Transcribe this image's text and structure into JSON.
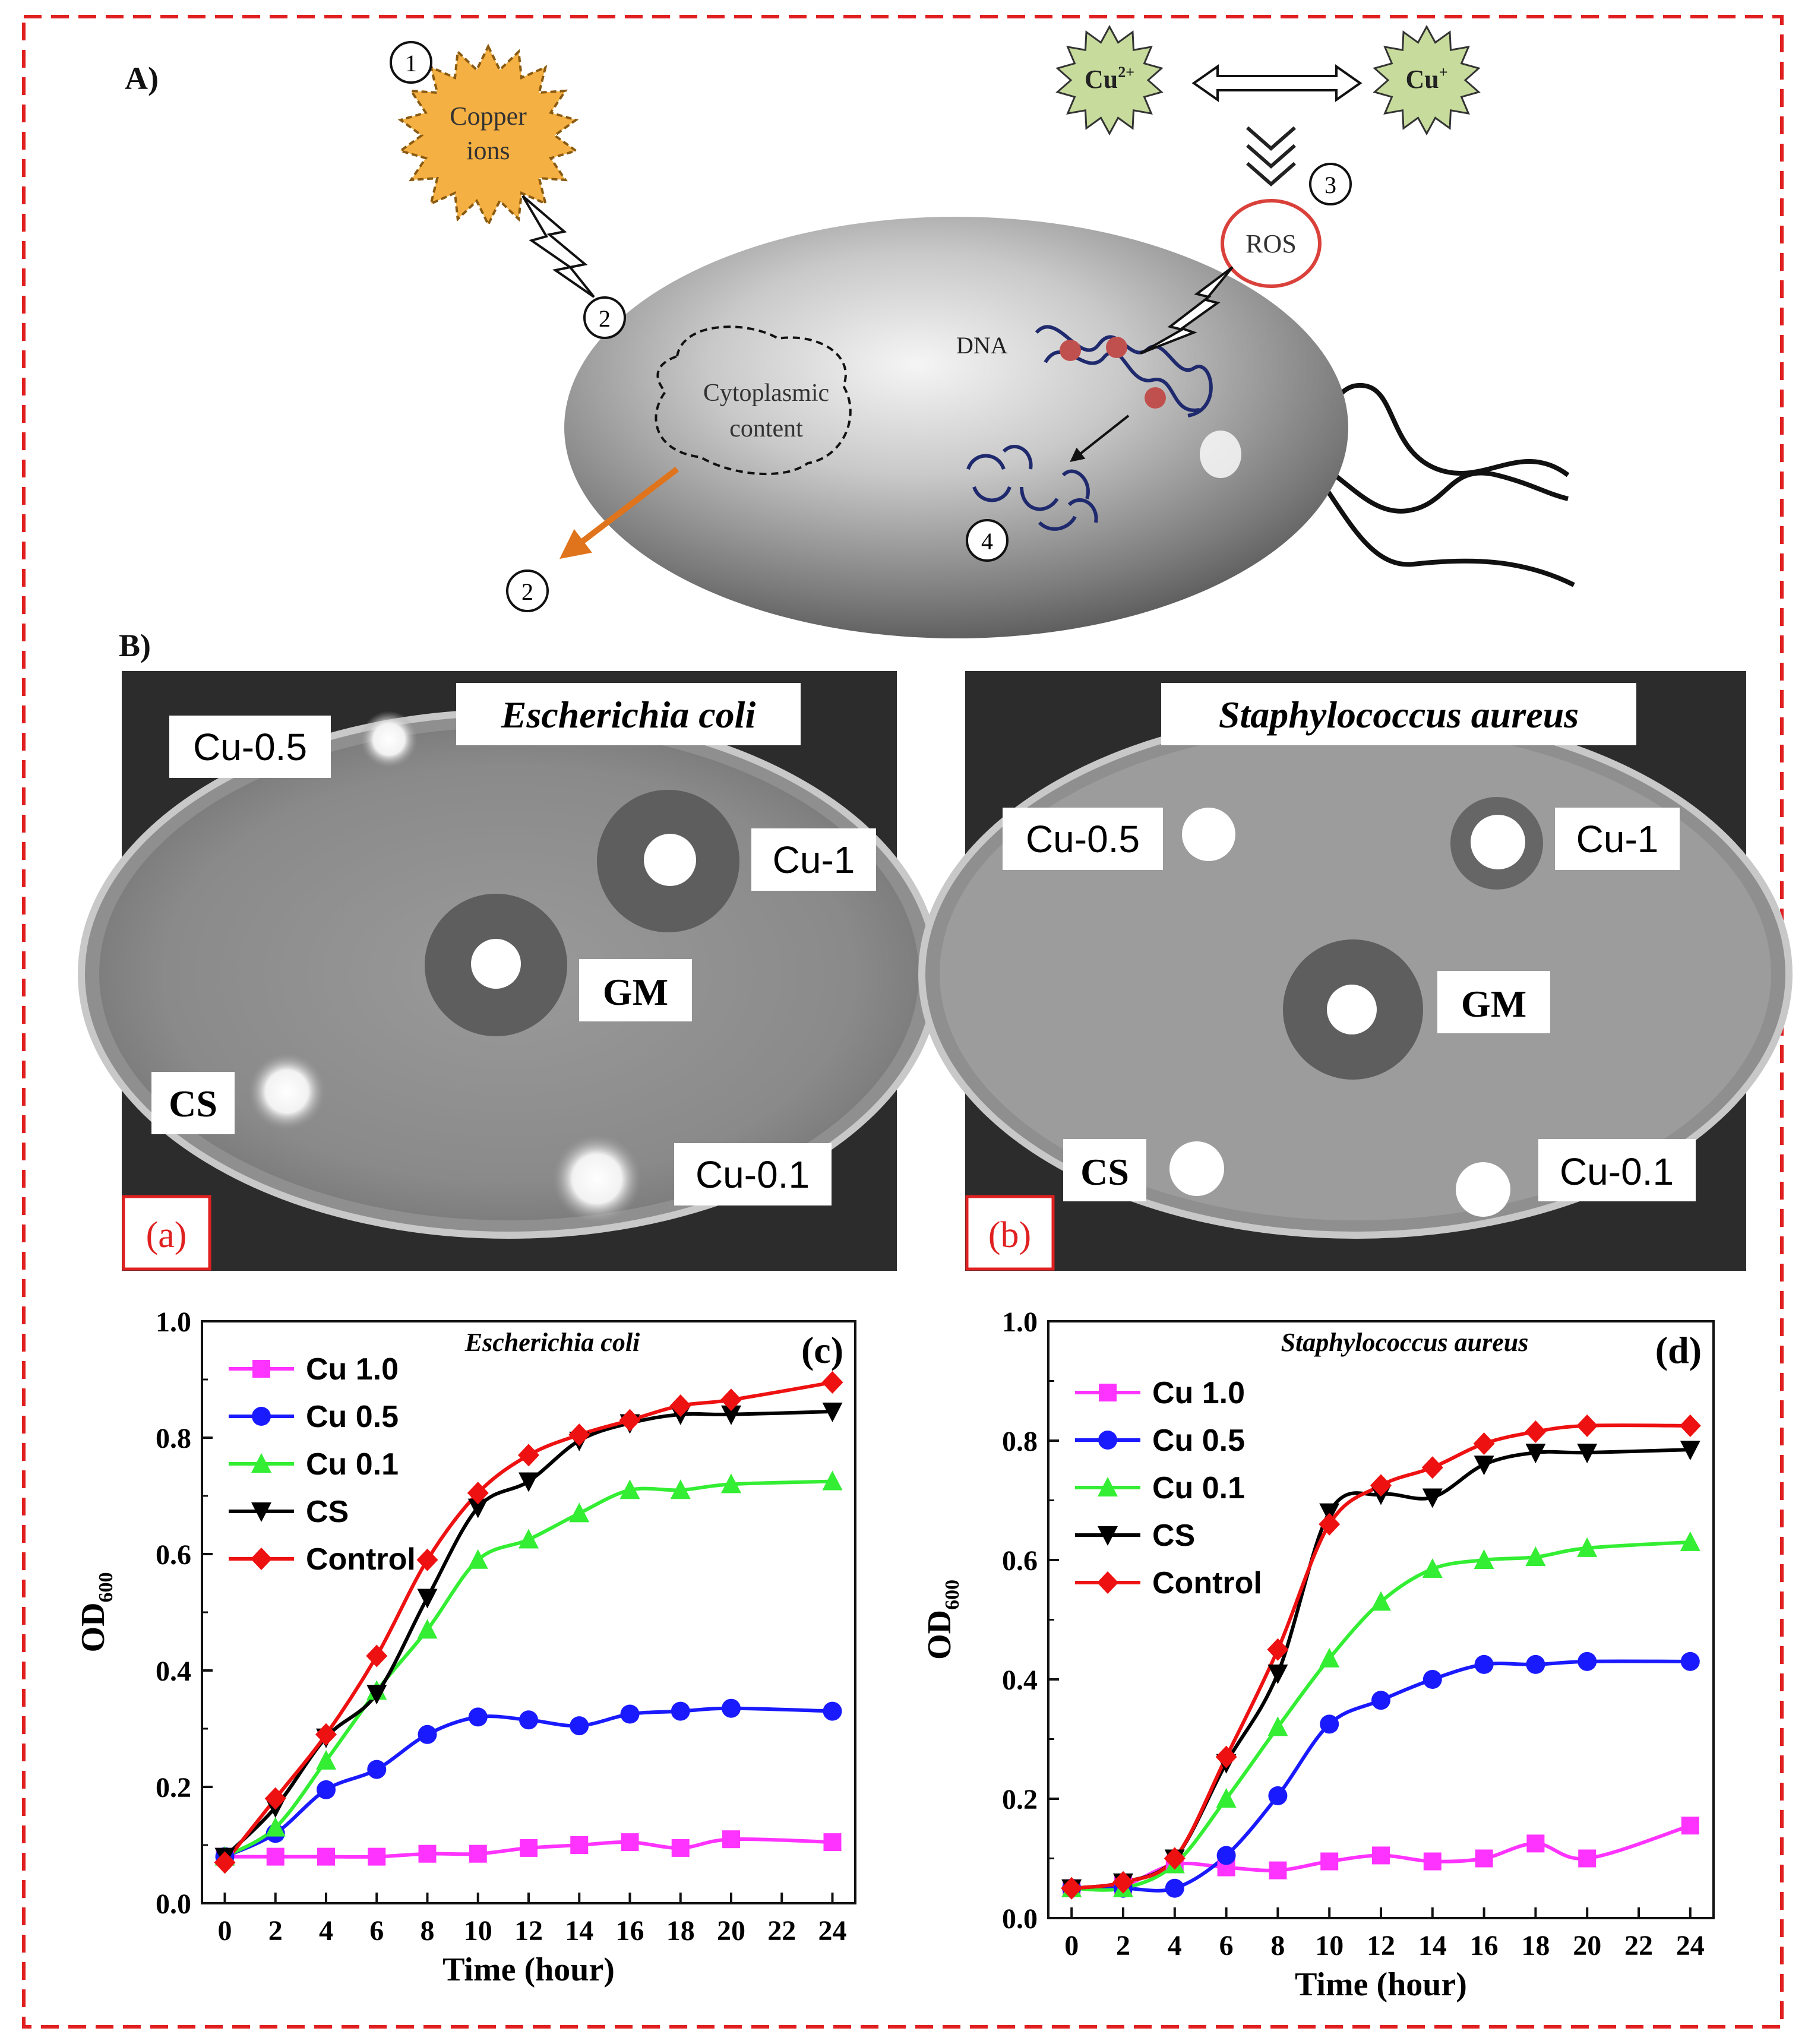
{
  "panelA": {
    "label": "A)",
    "copper_ions": "Copper ions",
    "copper_ions_lines": [
      "Copper",
      "ions"
    ],
    "cu2": "Cu2+",
    "cu2_base": "Cu",
    "cu2_sup": "2+",
    "cu1": "Cu+",
    "cu1_base": "Cu",
    "cu1_sup": "+",
    "ros": "ROS",
    "dna": "DNA",
    "cytoplasmic_content": "Cytoplasmic content",
    "cyto_lines": [
      "Cytoplasmic",
      "content"
    ],
    "steps": [
      "1",
      "2",
      "2",
      "3",
      "4"
    ]
  },
  "panelB": {
    "label": "B)",
    "plates": [
      {
        "tag": "(a)",
        "organism": "Escherichia coli",
        "labels": {
          "cu05": "Cu-0.5",
          "cu1": "Cu-1",
          "gm": "GM",
          "cs": "CS",
          "cu01": "Cu-0.1"
        }
      },
      {
        "tag": "(b)",
        "organism": "Staphylococcus aureus",
        "labels": {
          "cu05": "Cu-0.5",
          "cu1": "Cu-1",
          "gm": "GM",
          "cs": "CS",
          "cu01": "Cu-0.1"
        }
      }
    ]
  },
  "colors": {
    "frame": "#e02020",
    "cu10": "#ff33ff",
    "cu05": "#1a1aff",
    "cu01": "#33ee33",
    "cs": "#000000",
    "control": "#ee1111",
    "copper_star": "#f4b042",
    "cu_star": "#c7dc9c",
    "ros_ring": "#d9413a",
    "dna": "#1f2a6e",
    "arrow_orange": "#e0741c"
  },
  "icons": [
    "lightning-icon",
    "double-arrow-icon",
    "chevron-down-icon",
    "flagellum-icon"
  ],
  "chart_data": [
    {
      "type": "line",
      "tag": "(c)",
      "title": "Escherichia coli",
      "xlabel": "Time (hour)",
      "ylabel": "OD600",
      "ylabel_base": "OD",
      "ylabel_sub": "600",
      "x": [
        0,
        2,
        4,
        6,
        8,
        10,
        12,
        14,
        16,
        18,
        20,
        24
      ],
      "xticks": [
        "0",
        "2",
        "4",
        "6",
        "8",
        "10",
        "12",
        "14",
        "16",
        "18",
        "20",
        "22",
        "24"
      ],
      "xlim": [
        0,
        24
      ],
      "ylim": [
        0,
        1.0
      ],
      "yticks": [
        "0.0",
        "0.2",
        "0.4",
        "0.6",
        "0.8",
        "1.0"
      ],
      "legend": "top-left",
      "series": [
        {
          "name": "Cu 1.0",
          "marker": "square",
          "values": [
            0.08,
            0.08,
            0.08,
            0.08,
            0.085,
            0.085,
            0.095,
            0.1,
            0.105,
            0.095,
            0.11,
            0.105
          ]
        },
        {
          "name": "Cu 0.5",
          "marker": "circle",
          "values": [
            0.08,
            0.12,
            0.195,
            0.23,
            0.29,
            0.32,
            0.315,
            0.305,
            0.325,
            0.33,
            0.335,
            0.33
          ]
        },
        {
          "name": "Cu 0.1",
          "marker": "triangle-up",
          "values": [
            0.08,
            0.13,
            0.245,
            0.365,
            0.47,
            0.59,
            0.625,
            0.67,
            0.71,
            0.71,
            0.72,
            0.725
          ]
        },
        {
          "name": "CS",
          "marker": "triangle-down",
          "values": [
            0.08,
            0.165,
            0.285,
            0.36,
            0.525,
            0.68,
            0.725,
            0.795,
            0.825,
            0.84,
            0.84,
            0.845
          ]
        },
        {
          "name": "Control",
          "marker": "diamond",
          "values": [
            0.07,
            0.18,
            0.29,
            0.425,
            0.59,
            0.705,
            0.77,
            0.805,
            0.83,
            0.855,
            0.865,
            0.895
          ]
        }
      ]
    },
    {
      "type": "line",
      "tag": "(d)",
      "title": "Staphylococcus aureus",
      "xlabel": "Time (hour)",
      "ylabel": "OD600",
      "ylabel_base": "OD",
      "ylabel_sub": "600",
      "x": [
        0,
        2,
        4,
        6,
        8,
        10,
        12,
        14,
        16,
        18,
        20,
        24
      ],
      "xticks": [
        "0",
        "2",
        "4",
        "6",
        "8",
        "10",
        "12",
        "14",
        "16",
        "18",
        "20",
        "22",
        "24"
      ],
      "xlim": [
        0,
        24
      ],
      "ylim": [
        0,
        1.0
      ],
      "yticks": [
        "0.0",
        "0.2",
        "0.4",
        "0.6",
        "0.8",
        "1.0"
      ],
      "legend": "top-left",
      "series": [
        {
          "name": "Cu 1.0",
          "marker": "square",
          "values": [
            0.05,
            0.055,
            0.09,
            0.085,
            0.08,
            0.095,
            0.105,
            0.095,
            0.1,
            0.125,
            0.1,
            0.155
          ]
        },
        {
          "name": "Cu 0.5",
          "marker": "circle",
          "values": [
            0.05,
            0.05,
            0.05,
            0.105,
            0.205,
            0.325,
            0.365,
            0.4,
            0.425,
            0.425,
            0.43,
            0.43
          ]
        },
        {
          "name": "Cu 0.1",
          "marker": "triangle-up",
          "values": [
            0.05,
            0.05,
            0.09,
            0.2,
            0.32,
            0.435,
            0.53,
            0.585,
            0.6,
            0.605,
            0.62,
            0.63
          ]
        },
        {
          "name": "CS",
          "marker": "triangle-down",
          "values": [
            0.05,
            0.06,
            0.1,
            0.26,
            0.41,
            0.68,
            0.71,
            0.705,
            0.76,
            0.78,
            0.78,
            0.785
          ]
        },
        {
          "name": "Control",
          "marker": "diamond",
          "values": [
            0.05,
            0.06,
            0.1,
            0.27,
            0.45,
            0.66,
            0.725,
            0.755,
            0.795,
            0.815,
            0.825,
            0.825
          ]
        }
      ]
    }
  ]
}
